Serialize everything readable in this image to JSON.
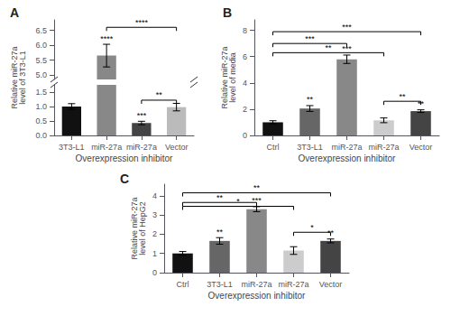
{
  "chart_data": [
    {
      "type": "bar",
      "title": "A",
      "categories": [
        "3T3-L1",
        "miR-27a",
        "miR-27a",
        "Vector"
      ],
      "values": [
        1.0,
        5.65,
        0.43,
        0.98
      ],
      "errors": [
        0.1,
        0.38,
        0.06,
        0.13
      ],
      "colors": [
        "#111111",
        "#888888",
        "#444444",
        "#bbbbbb"
      ],
      "bar_stars": [
        null,
        "****",
        "***",
        null
      ],
      "sig_lines": [
        {
          "x1": 1,
          "x2": 3,
          "y": 6.6,
          "label": "****"
        },
        {
          "x1": 2,
          "x2": 3,
          "y": 1.22,
          "label": "**"
        }
      ],
      "xlabel": "Overexpression inhibitor",
      "ylabel": "Relative miR-27a\nlevel of 3T3-L1",
      "ylim": [
        [
          0,
          1.75
        ],
        [
          4.85,
          6.85
        ]
      ],
      "yticks": [
        [
          {
            "value": 0,
            "label": "0.0"
          },
          0.5,
          {
            "value": 1,
            "label": "1.0"
          },
          1.5
        ],
        [
          {
            "value": 5,
            "label": "5.0"
          },
          5.5,
          {
            "value": 6,
            "label": "6.0"
          },
          6.5
        ]
      ],
      "grid": false
    },
    {
      "type": "bar",
      "title": "B",
      "categories": [
        "Ctrl",
        "3T3-L1",
        "miR-27a",
        "miR-27a",
        "Vector"
      ],
      "values": [
        1.0,
        2.05,
        5.8,
        1.15,
        1.85
      ],
      "errors": [
        0.12,
        0.22,
        0.32,
        0.18,
        0.1
      ],
      "colors": [
        "#111111",
        "#666666",
        "#888888",
        "#cccccc",
        "#444444"
      ],
      "bar_stars": [
        null,
        "**",
        "***",
        null,
        "**"
      ],
      "sig_lines": [
        {
          "x1": 0,
          "x2": 2,
          "y": 7.0,
          "label": "***"
        },
        {
          "x1": 0,
          "x2": 4,
          "y": 7.9,
          "label": "***"
        },
        {
          "x1": 0,
          "x2": 3,
          "y": 6.3,
          "label": "**"
        },
        {
          "x1": 3,
          "x2": 4,
          "y": 2.6,
          "label": "**"
        }
      ],
      "xlabel": "Overexpression inhibitor",
      "ylabel": "Relative miR-27a\nlevel of media",
      "ylim": [
        0,
        8.8
      ],
      "yticks": [
        0,
        2,
        4,
        6,
        8
      ],
      "grid": false
    },
    {
      "type": "bar",
      "title": "C",
      "categories": [
        "Ctrl",
        "3T3-L1",
        "miR-27a",
        "miR-27a",
        "Vector"
      ],
      "values": [
        1.0,
        1.65,
        3.3,
        1.15,
        1.65
      ],
      "errors": [
        0.1,
        0.17,
        0.13,
        0.2,
        0.1
      ],
      "colors": [
        "#111111",
        "#666666",
        "#888888",
        "#cccccc",
        "#444444"
      ],
      "bar_stars": [
        null,
        "**",
        "***",
        null,
        "**"
      ],
      "sig_lines": [
        {
          "x1": 0,
          "x2": 2,
          "y": 3.65,
          "label": "**"
        },
        {
          "x1": 0,
          "x2": 4,
          "y": 4.15,
          "label": "**"
        },
        {
          "x1": 0,
          "x2": 3,
          "y": 3.45,
          "label": "*"
        },
        {
          "x1": 3,
          "x2": 4,
          "y": 2.1,
          "label": "*"
        }
      ],
      "xlabel": "Overexpression inhibitor",
      "ylabel": "Relative miR-27a\nlevel of HepG2",
      "ylim": [
        0,
        4.6
      ],
      "yticks": [
        0,
        1,
        2,
        3,
        4
      ],
      "grid": false
    }
  ]
}
